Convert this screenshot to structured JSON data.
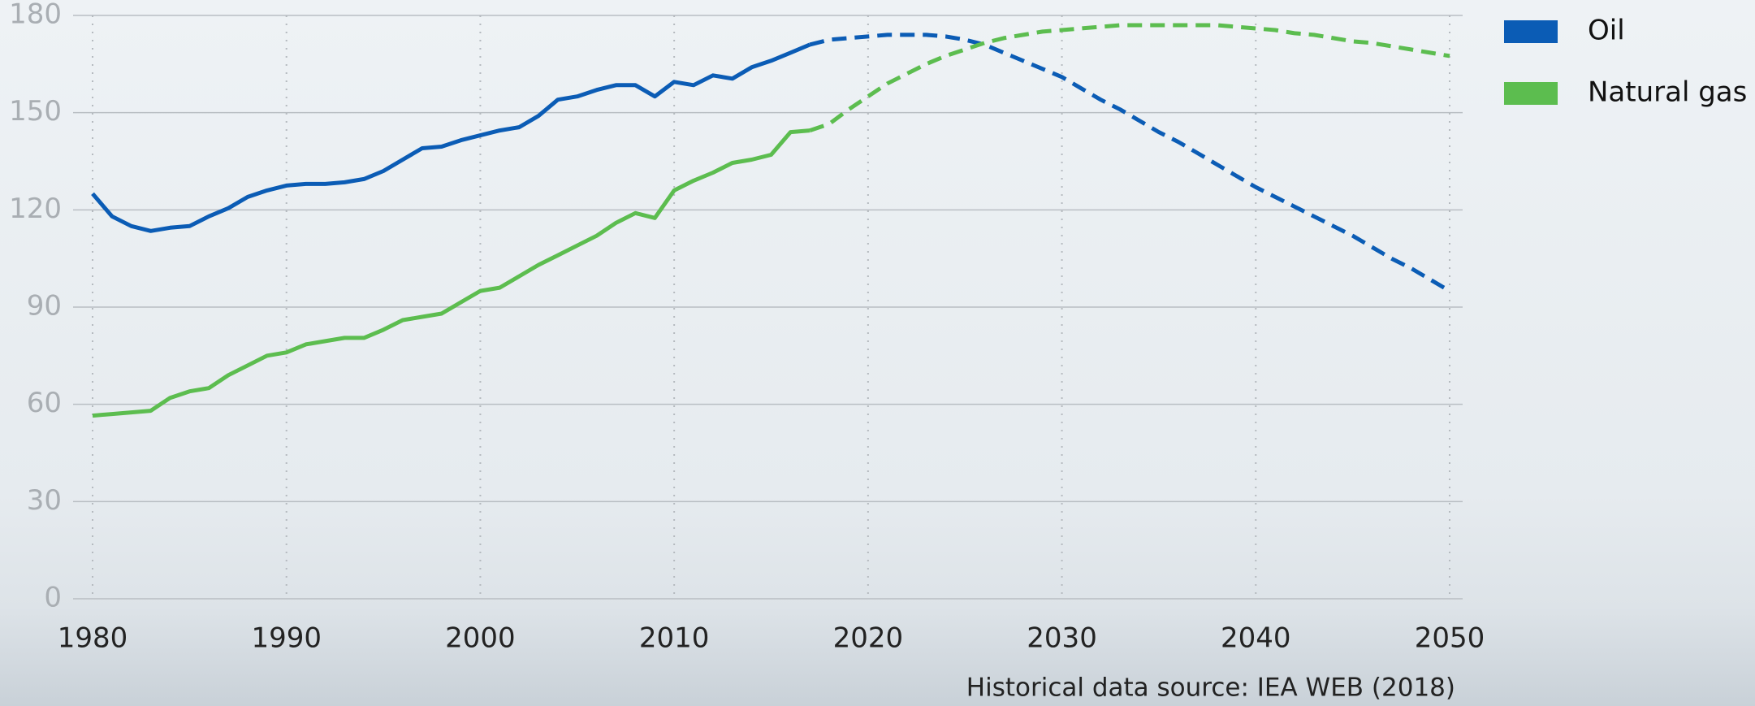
{
  "chart_data": {
    "type": "line",
    "x": [
      1980,
      1981,
      1982,
      1983,
      1984,
      1985,
      1986,
      1987,
      1988,
      1989,
      1990,
      1991,
      1992,
      1993,
      1994,
      1995,
      1996,
      1997,
      1998,
      1999,
      2000,
      2001,
      2002,
      2003,
      2004,
      2005,
      2006,
      2007,
      2008,
      2009,
      2010,
      2011,
      2012,
      2013,
      2014,
      2015,
      2016,
      2017,
      2018,
      2019,
      2020,
      2021,
      2022,
      2023,
      2024,
      2025,
      2026,
      2027,
      2028,
      2029,
      2030,
      2031,
      2032,
      2033,
      2034,
      2035,
      2036,
      2037,
      2038,
      2039,
      2040,
      2041,
      2042,
      2043,
      2044,
      2045,
      2046,
      2047,
      2048,
      2049,
      2050
    ],
    "projection_from": 2017,
    "series": [
      {
        "name": "Oil",
        "color": "#0b5cb5",
        "values": [
          125,
          118,
          115,
          113.5,
          114.5,
          115,
          118,
          120.5,
          124,
          126,
          127.5,
          128,
          128,
          128.5,
          129.5,
          132,
          135.5,
          139,
          139.5,
          141.5,
          143,
          144.5,
          145.5,
          149,
          154,
          155,
          157,
          158.5,
          158.5,
          155,
          159.5,
          158.5,
          161.5,
          160.5,
          164,
          166,
          168.5,
          171,
          172.5,
          173,
          173.5,
          174,
          174,
          174,
          173.5,
          172.5,
          171,
          168.5,
          166,
          163.5,
          161,
          157.5,
          154,
          151,
          147.5,
          144,
          141,
          137.5,
          134,
          130.5,
          127,
          124,
          121,
          118,
          115,
          112,
          108.5,
          105,
          102,
          98.5,
          95
        ]
      },
      {
        "name": "Natural gas",
        "color": "#5cbd4f",
        "values": [
          56.5,
          57,
          57.5,
          58,
          62,
          64,
          65,
          69,
          72,
          75,
          76,
          78.5,
          79.5,
          80.5,
          80.5,
          83,
          86,
          87,
          88,
          91.5,
          95,
          96,
          99.5,
          103,
          106,
          109,
          112,
          116,
          119,
          117.5,
          126,
          129,
          131.5,
          134.5,
          135.5,
          137,
          144,
          144.5,
          146.5,
          151,
          155,
          159,
          162,
          165,
          167.5,
          169.5,
          171.5,
          173,
          174,
          175,
          175.5,
          176,
          176.5,
          177,
          177,
          177,
          177,
          177,
          177,
          176.5,
          176,
          175.5,
          174.5,
          174,
          173,
          172,
          171.5,
          170.5,
          169.5,
          168.5,
          167.5
        ]
      }
    ],
    "xlim": [
      1980,
      2050
    ],
    "xticks": [
      1980,
      1990,
      2000,
      2010,
      2020,
      2030,
      2040,
      2050
    ],
    "ylim": [
      0,
      180
    ],
    "yticks": [
      0,
      30,
      60,
      90,
      120,
      150,
      180
    ],
    "grid": true,
    "legend": "right",
    "note": "Historical data source: IEA WEB (2018)"
  }
}
